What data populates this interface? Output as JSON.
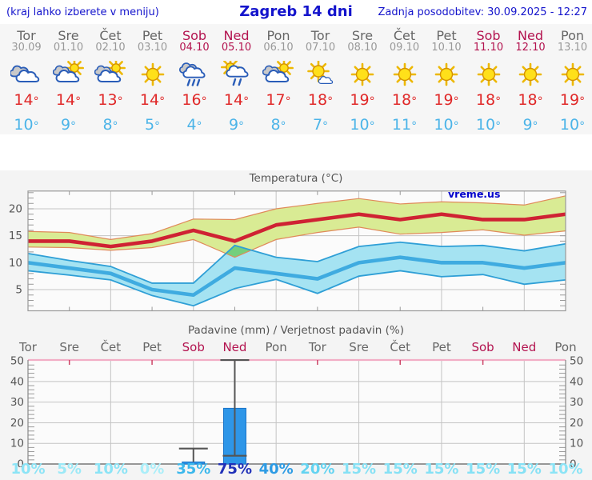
{
  "header": {
    "note": "(kraj lahko izberete v meniju)",
    "title": "Zagreb 14 dni",
    "updated": "Zadnja posodobitev: 30.09.2025 - 12:27"
  },
  "colors": {
    "accent_blue": "#1414cc",
    "weekday": "#666666",
    "date": "#999999",
    "weekend": "#b3134f",
    "temp_high": "#e02828",
    "temp_low": "#4cb4e8",
    "max_band_fill": "#d9eb94",
    "max_band_edge": "#e08a5a",
    "max_line": "#cf2233",
    "min_band_fill": "#a5e3f2",
    "min_band_edge": "#2f9fd6",
    "min_line": "#3fabe0",
    "band_overlap": "#74cf7c",
    "bar_fill": "#2e96e8",
    "bar_edge": "#1873c8",
    "whisker": "#555555",
    "grid": "#c4c4c4",
    "frame": "#999999",
    "precip_top_border": "#f2aec6",
    "precip_top_tick": "#cc4466",
    "axis_label": "#555555",
    "watermark_color": "#0000cc",
    "plot_bg": "#fbfbfb"
  },
  "days": [
    {
      "name": "Tor",
      "date": "30.09",
      "weekend": false,
      "icon": "cloudy",
      "high": 14,
      "low": 10,
      "precip_prob": "10%",
      "prob_color": "#8ce4f6"
    },
    {
      "name": "Sre",
      "date": "01.10",
      "weekend": false,
      "icon": "partly-sunny",
      "high": 14,
      "low": 9,
      "precip_prob": "5%",
      "prob_color": "#9ce9f7"
    },
    {
      "name": "Čet",
      "date": "02.10",
      "weekend": false,
      "icon": "partly-sunny",
      "high": 13,
      "low": 8,
      "precip_prob": "10%",
      "prob_color": "#8ce4f6"
    },
    {
      "name": "Pet",
      "date": "03.10",
      "weekend": false,
      "icon": "sunny",
      "high": 14,
      "low": 5,
      "precip_prob": "0%",
      "prob_color": "#aaeef9"
    },
    {
      "name": "Sob",
      "date": "04.10",
      "weekend": true,
      "icon": "rain",
      "high": 16,
      "low": 4,
      "precip_prob": "35%",
      "prob_color": "#3cb8ec"
    },
    {
      "name": "Ned",
      "date": "05.10",
      "weekend": true,
      "icon": "sun-shower",
      "high": 14,
      "low": 9,
      "precip_prob": "75%",
      "prob_color": "#2030b8"
    },
    {
      "name": "Pon",
      "date": "06.10",
      "weekend": false,
      "icon": "partly-sunny",
      "high": 17,
      "low": 8,
      "precip_prob": "40%",
      "prob_color": "#2d9be4"
    },
    {
      "name": "Tor",
      "date": "07.10",
      "weekend": false,
      "icon": "mostly-sunny",
      "high": 18,
      "low": 7,
      "precip_prob": "20%",
      "prob_color": "#63d3f1"
    },
    {
      "name": "Sre",
      "date": "08.10",
      "weekend": false,
      "icon": "sunny",
      "high": 19,
      "low": 10,
      "precip_prob": "15%",
      "prob_color": "#86e1f5"
    },
    {
      "name": "Čet",
      "date": "09.10",
      "weekend": false,
      "icon": "sunny",
      "high": 18,
      "low": 11,
      "precip_prob": "15%",
      "prob_color": "#86e1f5"
    },
    {
      "name": "Pet",
      "date": "10.10",
      "weekend": false,
      "icon": "sunny",
      "high": 19,
      "low": 10,
      "precip_prob": "15%",
      "prob_color": "#86e1f5"
    },
    {
      "name": "Sob",
      "date": "11.10",
      "weekend": true,
      "icon": "sunny",
      "high": 18,
      "low": 10,
      "precip_prob": "15%",
      "prob_color": "#86e1f5"
    },
    {
      "name": "Ned",
      "date": "12.10",
      "weekend": true,
      "icon": "sunny",
      "high": 18,
      "low": 9,
      "precip_prob": "15%",
      "prob_color": "#86e1f5"
    },
    {
      "name": "Pon",
      "date": "13.10",
      "weekend": false,
      "icon": "sunny",
      "high": 19,
      "low": 10,
      "precip_prob": "10%",
      "prob_color": "#8ce4f6"
    }
  ],
  "chart_data": [
    {
      "type": "line",
      "title": "Temperatura (°C)",
      "watermark": "vreme.us",
      "categories": [
        "Tor 30.09",
        "Sre 01.10",
        "Čet 02.10",
        "Pet 03.10",
        "Sob 04.10",
        "Ned 05.10",
        "Pon 06.10",
        "Tor 07.10",
        "Sre 08.10",
        "Čet 09.10",
        "Pet 10.10",
        "Sob 11.10",
        "Ned 12.10",
        "Pon 13.10"
      ],
      "ylim": [
        1,
        23.5
      ],
      "yticks": [
        5,
        10,
        15,
        20
      ],
      "grid": true,
      "series": [
        {
          "name": "max_temp",
          "values": [
            14,
            14,
            13,
            14,
            16,
            14,
            17,
            18,
            19,
            18,
            19,
            18,
            18,
            19
          ]
        },
        {
          "name": "max_upper",
          "values": [
            15.8,
            15.6,
            14.3,
            15.4,
            18.1,
            18.0,
            20.0,
            21.0,
            21.9,
            20.9,
            21.3,
            21.1,
            20.7,
            22.4
          ]
        },
        {
          "name": "max_lower",
          "values": [
            12.9,
            12.8,
            12.3,
            12.8,
            14.3,
            11.0,
            14.3,
            15.6,
            16.6,
            15.3,
            15.6,
            16.1,
            15.1,
            15.9
          ]
        },
        {
          "name": "min_temp",
          "values": [
            10,
            9,
            8,
            5,
            4,
            9,
            8,
            7,
            10,
            11,
            10,
            10,
            9,
            10
          ]
        },
        {
          "name": "min_upper",
          "values": [
            11.7,
            10.4,
            9.3,
            6.2,
            6.2,
            13.2,
            11.0,
            10.2,
            13.0,
            13.8,
            13.0,
            13.2,
            12.2,
            13.5
          ]
        },
        {
          "name": "min_lower",
          "values": [
            8.5,
            7.7,
            6.8,
            3.9,
            2.0,
            5.2,
            6.9,
            4.3,
            7.5,
            8.5,
            7.4,
            7.8,
            6.0,
            6.8
          ]
        }
      ],
      "overlap_polygon": [
        [
          4.786,
          11.7
        ],
        [
          5,
          13.2
        ],
        [
          5.4,
          12.32
        ],
        [
          5,
          11.0
        ]
      ]
    },
    {
      "type": "bar",
      "title": "Padavine (mm) / Verjetnost padavin (%)",
      "categories": [
        "Tor",
        "Sre",
        "Čet",
        "Pet",
        "Sob",
        "Ned",
        "Pon",
        "Tor",
        "Sre",
        "Čet",
        "Pet",
        "Sob",
        "Ned",
        "Pon"
      ],
      "ylim": [
        0,
        50.4
      ],
      "yticks": [
        0,
        10,
        20,
        30,
        40,
        50
      ],
      "values": [
        0,
        0,
        0,
        0,
        1,
        27,
        0,
        0,
        0,
        0,
        0,
        0,
        0,
        0
      ],
      "whiskers": [
        {
          "day": 4,
          "from": 1,
          "to": 7.5,
          "cap_top": true,
          "cap_bottom": false
        },
        {
          "day": 5,
          "from": 4,
          "to": 50.4,
          "cap_top": true,
          "cap_bottom": true
        }
      ],
      "probabilities": [
        "10%",
        "5%",
        "10%",
        "0%",
        "35%",
        "75%",
        "40%",
        "20%",
        "15%",
        "15%",
        "15%",
        "15%",
        "15%",
        "10%"
      ]
    }
  ]
}
